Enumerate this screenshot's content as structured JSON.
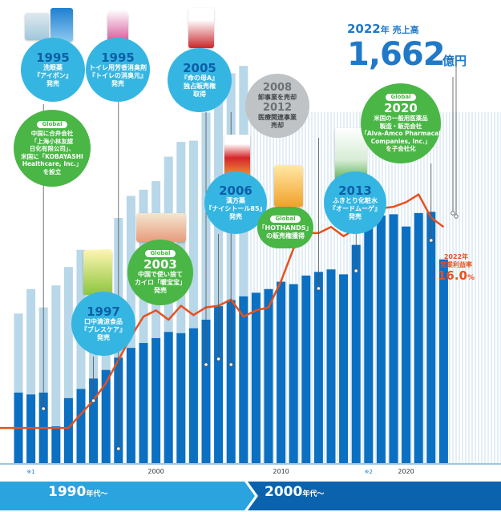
{
  "chart_data": {
    "type": "bar",
    "x_start_year": 1989,
    "x_tick_labels": [
      {
        "year": 1990,
        "label": "※1"
      },
      {
        "year": 2000,
        "label": "2000"
      },
      {
        "year": 2010,
        "label": "2010"
      },
      {
        "year": 2017,
        "label": "※2"
      },
      {
        "year": 2020,
        "label": "2020"
      }
    ],
    "series": [
      {
        "name": "売上高",
        "type": "bar",
        "values": [
          575,
          560,
          575,
          300,
          530,
          605,
          690,
          760,
          860,
          940,
          980,
          1020,
          1070,
          1060,
          1100,
          1170,
          1280,
          1330,
          1360,
          1390,
          1420,
          1480,
          1460,
          1530,
          1560,
          1580,
          1540,
          1780,
          1990,
          2020,
          2030,
          1930,
          2040,
          2050,
          1662
        ]
      },
      {
        "name": "",
        "type": "bar_background",
        "values": [
          1220,
          1420,
          1270,
          1450,
          1600,
          1740,
          1720,
          1740,
          2000,
          2180,
          2230,
          2300,
          2500,
          2620,
          2630,
          2860,
          3080,
          3180,
          3240
        ]
      },
      {
        "name": "営業利益率",
        "type": "line",
        "values": [
          3.0,
          3.0,
          3.0,
          3.0,
          3.0,
          3.9,
          4.8,
          5.9,
          7.4,
          8.9,
          10.2,
          10.6,
          10.0,
          10.9,
          10.3,
          10.8,
          10.9,
          11.3,
          10.2,
          10.6,
          10.8,
          12.5,
          14.6,
          15.6,
          15.6,
          16.0,
          15.4,
          15.9,
          16.4,
          17.2,
          17.3,
          17.6,
          18.1,
          16.6,
          16.0
        ]
      }
    ]
  },
  "headline": {
    "year_label": "2022",
    "year_suffix": "年 売上高",
    "value": "1,662",
    "unit": "億円"
  },
  "margin_label": {
    "year": "2022年",
    "label": "営業利益率",
    "value": "16.0",
    "unit": "%"
  },
  "decades": [
    {
      "label": "1990",
      "suffix": "年代〜"
    },
    {
      "label": "2000",
      "suffix": "年代〜"
    }
  ],
  "milestones": {
    "m1995a": {
      "year": "1995",
      "text": "洗眼薬\n『アイボン』\n発売"
    },
    "m1995b": {
      "year": "1995",
      "text": "トイレ用芳香消臭剤\n『トイレの消臭元』\n発売"
    },
    "m2005": {
      "year": "2005",
      "text": "『命の母A』\n独占販売権\n取得"
    },
    "m2008": {
      "year1": "2008",
      "text1": "卸事業を売却",
      "year2": "2012",
      "text2": "医療関連事業\n売却"
    },
    "mglobal1": {
      "badge": "Global",
      "text": "中国に合弁会社\n「上海小林友誼\n日化有限公司」、\n米国に「KOBAYASHI\nHealthcare, Inc.」\nを設立"
    },
    "m1997": {
      "year": "1997",
      "text": "口中清涼食品\n『ブレスケア』\n発売"
    },
    "m2003": {
      "badge": "Global",
      "year": "2003",
      "text": "中国で使い捨て\nカイロ「暖宝宝」\n発売"
    },
    "m2006": {
      "year": "2006",
      "text": "漢方薬\n『ナイシトール85』\n発売"
    },
    "mhothands": {
      "badge": "Global",
      "text": "「HOTHANDS」\nの販売権獲得"
    },
    "m2013": {
      "year": "2013",
      "text": "ふきとり化粧水\n『オードムーゲ』\n発売"
    },
    "m2020": {
      "badge": "Global",
      "year": "2020",
      "text": "米国の一般用医薬品\n製造・販売会社\n「Alva-Amco Pharmacal\nCompanies, Inc.」\nを子会社化"
    }
  },
  "colors": {
    "bar": "#0b6fc2",
    "bar_background": "#b8d7e8",
    "line": "#e8501c",
    "blue": "#35b6e2",
    "green": "#49b645",
    "gray": "#bfc3c5",
    "accent": "#1f79c7",
    "band_light": "#2aa3df",
    "band_dark": "#0b63ae",
    "stripe": "#e3eef6"
  }
}
